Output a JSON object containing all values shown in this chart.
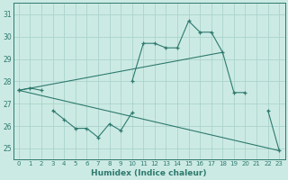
{
  "title": "",
  "xlabel": "Humidex (Indice chaleur)",
  "ylabel": "",
  "bg_color": "#cceae4",
  "grid_color": "#aad4cc",
  "line_color": "#2d7a6e",
  "xlim": [
    -0.5,
    23.5
  ],
  "ylim": [
    24.5,
    31.5
  ],
  "yticks": [
    25,
    26,
    27,
    28,
    29,
    30,
    31
  ],
  "xticks": [
    0,
    1,
    2,
    3,
    4,
    5,
    6,
    7,
    8,
    9,
    10,
    11,
    12,
    13,
    14,
    15,
    16,
    17,
    18,
    19,
    20,
    21,
    22,
    23
  ],
  "series1_x": [
    0,
    1,
    2,
    10,
    11,
    12,
    13,
    14,
    15,
    16,
    17,
    18,
    19,
    20,
    22,
    23
  ],
  "series1_y": [
    27.6,
    27.7,
    27.6,
    28.0,
    29.7,
    29.7,
    29.5,
    29.5,
    30.7,
    30.2,
    30.2,
    29.3,
    27.5,
    27.5,
    26.7,
    24.9
  ],
  "series2_x": [
    0,
    3,
    4,
    5,
    6,
    7,
    8,
    9,
    10
  ],
  "series2_y": [
    27.6,
    26.7,
    26.3,
    25.9,
    25.9,
    25.5,
    26.1,
    25.8,
    26.6
  ],
  "series3_x": [
    0,
    23
  ],
  "series3_y": [
    27.6,
    24.9
  ],
  "series4_x": [
    0,
    18
  ],
  "series4_y": [
    27.6,
    29.3
  ]
}
